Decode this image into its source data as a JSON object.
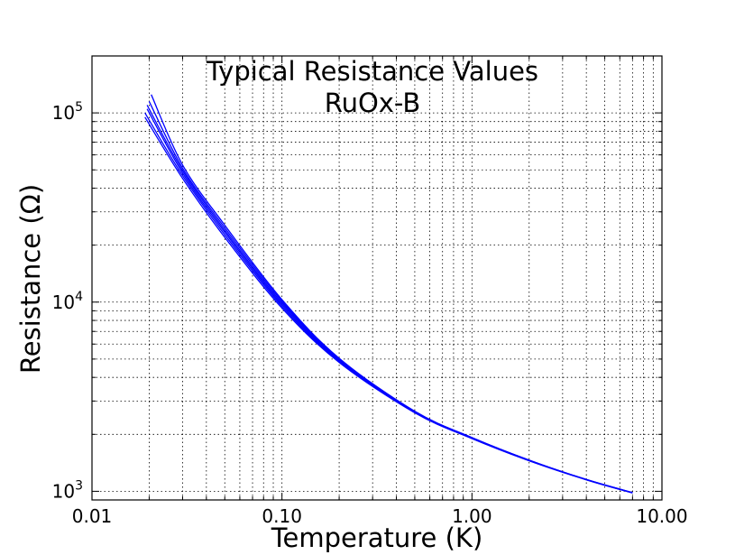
{
  "chart_data": {
    "type": "line",
    "title": "Typical Resistance Values",
    "subtitle": "RuOx-B",
    "xlabel": "Temperature (K)",
    "ylabel": "Resistance (Ω)",
    "x_scale": "log",
    "y_scale": "log",
    "xlim": [
      0.01,
      10
    ],
    "ylim": [
      900,
      200000
    ],
    "x_ticks": [
      0.01,
      0.1,
      1,
      10
    ],
    "x_tick_labels": [
      "0.01",
      "0.10",
      "1.00",
      "10.00"
    ],
    "y_ticks": [
      {
        "value": 1000,
        "base": "10",
        "exp": "3"
      },
      {
        "value": 10000,
        "base": "10",
        "exp": "4"
      },
      {
        "value": 100000,
        "base": "10",
        "exp": "5"
      }
    ],
    "grid": true,
    "line_color": "#0000ff",
    "series": [
      {
        "x": [
          0.019,
          0.03,
          0.05,
          0.1,
          0.2,
          0.5,
          1.0,
          2.0,
          4.0,
          7.0
        ],
        "y": [
          95000,
          45000,
          22000,
          9300,
          4800,
          2600,
          1900,
          1450,
          1150,
          980
        ]
      },
      {
        "x": [
          0.019,
          0.03,
          0.05,
          0.1,
          0.2,
          0.5,
          1.0,
          2.0,
          4.0,
          7.0
        ],
        "y": [
          100000,
          46500,
          22700,
          9500,
          4850,
          2610,
          1905,
          1452,
          1151,
          981
        ]
      },
      {
        "x": [
          0.0195,
          0.03,
          0.05,
          0.1,
          0.2,
          0.5,
          1.0,
          2.0,
          4.0,
          7.0
        ],
        "y": [
          105000,
          48000,
          23400,
          9700,
          4900,
          2620,
          1910,
          1455,
          1152,
          982
        ]
      },
      {
        "x": [
          0.0195,
          0.03,
          0.05,
          0.1,
          0.2,
          0.5,
          1.0,
          2.0,
          4.0,
          7.0
        ],
        "y": [
          110000,
          49500,
          24000,
          9900,
          4950,
          2630,
          1915,
          1458,
          1153,
          983
        ]
      },
      {
        "x": [
          0.02,
          0.03,
          0.05,
          0.1,
          0.2,
          0.5,
          1.0,
          2.0,
          4.0,
          7.0
        ],
        "y": [
          115000,
          51000,
          24700,
          10100,
          5000,
          2640,
          1920,
          1460,
          1154,
          984
        ]
      },
      {
        "x": [
          0.0205,
          0.03,
          0.05,
          0.1,
          0.2,
          0.5,
          1.0,
          2.0,
          4.0,
          7.0
        ],
        "y": [
          125000,
          53000,
          25500,
          10300,
          5050,
          2650,
          1925,
          1462,
          1155,
          985
        ]
      }
    ]
  }
}
